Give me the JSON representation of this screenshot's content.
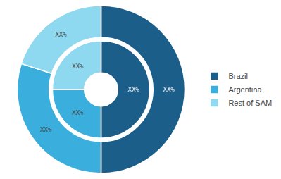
{
  "chart_data": {
    "type": "donut",
    "categories": [
      "Brazil",
      "Argentina",
      "Rest of SAM"
    ],
    "colors": [
      "#1b5e8a",
      "#3aaedc",
      "#8ed8f0"
    ],
    "series": [
      {
        "values": [
          50,
          30,
          20
        ],
        "value_labels": [
          "XX%",
          "XX%",
          "XX%"
        ]
      },
      {
        "values": [
          50,
          25,
          25
        ],
        "value_labels": [
          "XX%",
          "XX%",
          "XX%"
        ]
      }
    ],
    "data_labels": true,
    "legend": "right"
  }
}
